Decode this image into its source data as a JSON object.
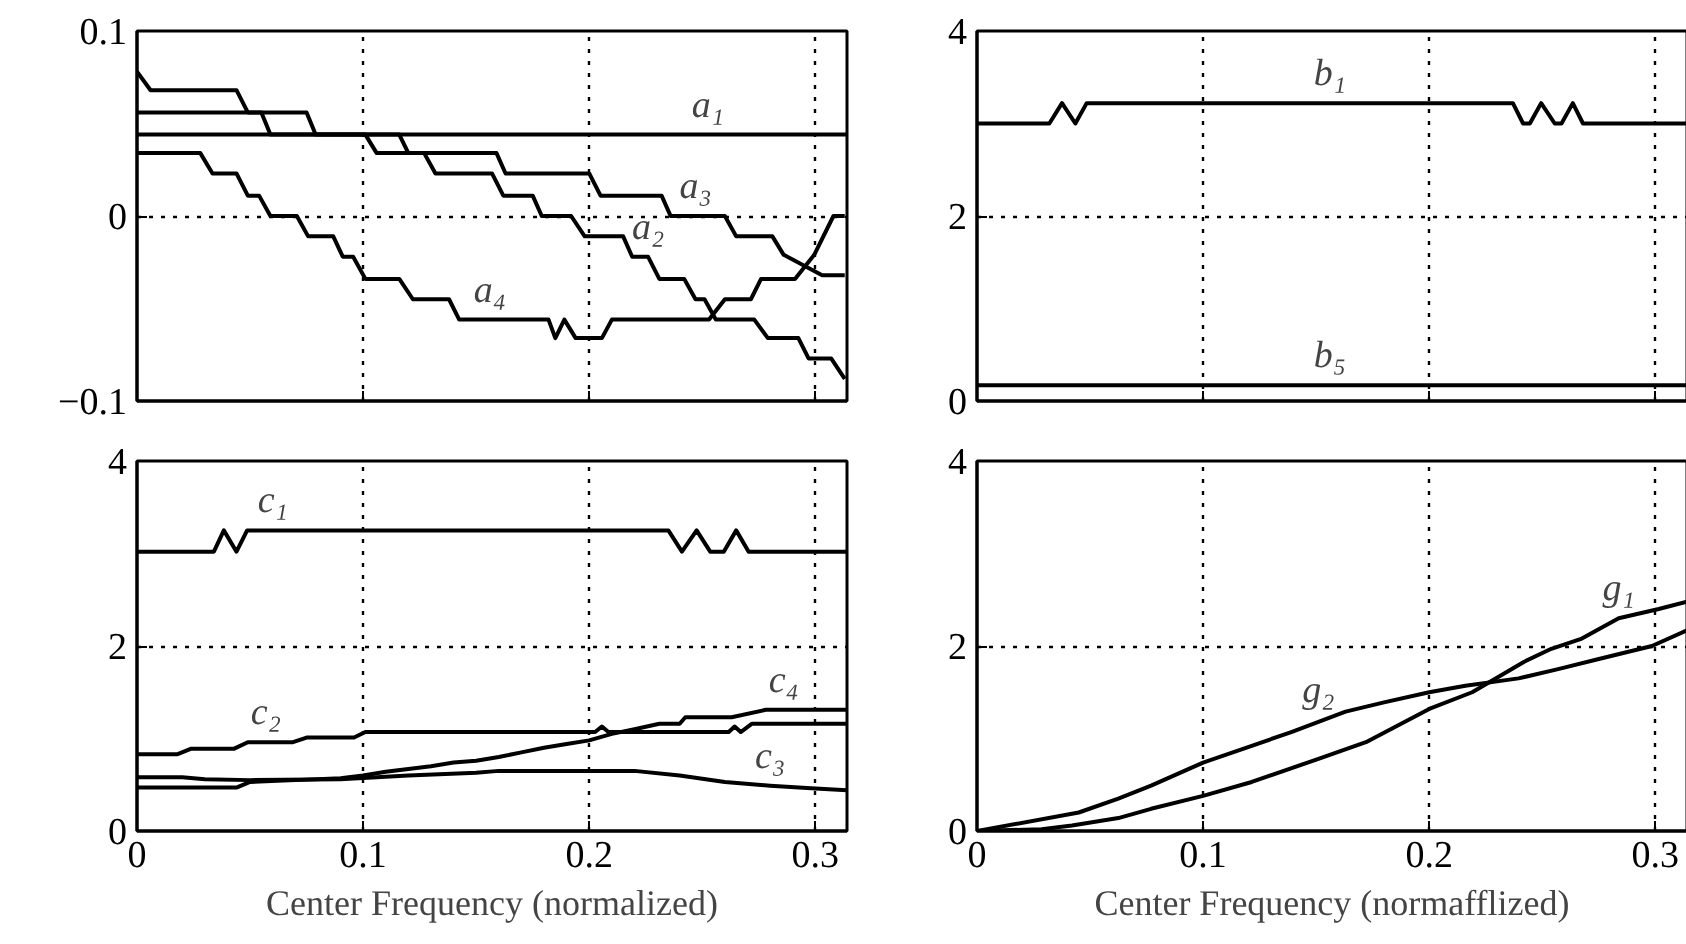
{
  "chart_data": [
    {
      "type": "line",
      "xlim": [
        0,
        0.314
      ],
      "xticks": [
        0,
        0.1,
        0.2,
        0.3
      ],
      "ylim": [
        -0.1,
        0.1
      ],
      "yticks": [
        {
          "value": -0.1,
          "label": "−0.1"
        },
        0,
        0.1
      ],
      "grid": true,
      "tick_labels": "y",
      "line_style": "solid",
      "series": [
        {
          "color": "#000000",
          "x": [
            0,
            0.314
          ],
          "values": [
            0.044,
            0.044
          ]
        },
        {
          "color": "#000000",
          "x": [
            0,
            0.006,
            0.044,
            0.049,
            0.055,
            0.059,
            0.101,
            0.106,
            0.127,
            0.132,
            0.157,
            0.162,
            0.175,
            0.179,
            0.192,
            0.198,
            0.215,
            0.219,
            0.226,
            0.231,
            0.242,
            0.247,
            0.251,
            0.256,
            0.273,
            0.279,
            0.2925,
            0.297,
            0.307,
            0.313
          ],
          "values": [
            0.078,
            0.068,
            0.068,
            0.056,
            0.056,
            0.044,
            0.044,
            0.034,
            0.034,
            0.023,
            0.023,
            0.011,
            0.011,
            0.0,
            0.0,
            -0.011,
            -0.011,
            -0.022,
            -0.022,
            -0.034,
            -0.034,
            -0.045,
            -0.045,
            -0.056,
            -0.056,
            -0.066,
            -0.066,
            -0.077,
            -0.077,
            -0.088
          ]
        },
        {
          "color": "#000000",
          "x": [
            0,
            0.075,
            0.079,
            0.116,
            0.12,
            0.159,
            0.163,
            0.2,
            0.205,
            0.232,
            0.236,
            0.26,
            0.265,
            0.281,
            0.286,
            0.303,
            0.313
          ],
          "values": [
            0.056,
            0.056,
            0.044,
            0.044,
            0.034,
            0.034,
            0.023,
            0.023,
            0.011,
            0.011,
            0.0,
            0.0,
            -0.011,
            -0.011,
            -0.021,
            -0.032,
            -0.032
          ]
        },
        {
          "color": "#000000",
          "x": [
            0,
            0.028,
            0.0334,
            0.044,
            0.049,
            0.054,
            0.059,
            0.0707,
            0.0757,
            0.0868,
            0.091,
            0.0956,
            0.101,
            0.116,
            0.122,
            0.138,
            0.1425,
            0.182,
            0.185,
            0.189,
            0.194,
            0.2056,
            0.21,
            0.253,
            0.26,
            0.2715,
            0.276,
            0.291,
            0.2995,
            0.308,
            0.313
          ],
          "values": [
            0.034,
            0.034,
            0.023,
            0.023,
            0.011,
            0.011,
            0.0,
            0.0,
            -0.011,
            -0.011,
            -0.022,
            -0.022,
            -0.034,
            -0.034,
            -0.045,
            -0.045,
            -0.056,
            -0.056,
            -0.066,
            -0.056,
            -0.066,
            -0.066,
            -0.056,
            -0.056,
            -0.045,
            -0.045,
            -0.034,
            -0.034,
            -0.021,
            0.0,
            0.0
          ]
        }
      ],
      "annotations": [
        {
          "text": "a₁",
          "x": 0.2525,
          "y": 0.044
        },
        {
          "text": "a₃",
          "x": 0.247,
          "y": 0.0
        },
        {
          "text": "a₂",
          "x": 0.226,
          "y": -0.022
        },
        {
          "text": "a₄",
          "x": 0.156,
          "y": -0.056
        }
      ]
    },
    {
      "type": "line",
      "xlim": [
        0,
        0.314
      ],
      "xticks": [
        0,
        0.1,
        0.2,
        0.3
      ],
      "ylim": [
        0,
        4
      ],
      "yticks": [
        0,
        2,
        4
      ],
      "grid": true,
      "tick_labels": "y",
      "line_style": "solid",
      "series": [
        {
          "color": "#000000",
          "x": [
            0,
            0.032,
            0.0376,
            0.0435,
            0.0485,
            0.237,
            0.2415,
            0.2445,
            0.2495,
            0.2555,
            0.2585,
            0.2635,
            0.268,
            0.314
          ],
          "values": [
            3.0,
            3.0,
            3.22,
            3.0,
            3.22,
            3.22,
            3.0,
            3.0,
            3.22,
            3.0,
            3.0,
            3.22,
            3.0,
            3.0
          ]
        },
        {
          "color": "#000000",
          "x": [
            0,
            0.314
          ],
          "values": [
            0.17,
            0.17
          ]
        }
      ],
      "annotations": [
        {
          "text": "b₁",
          "x": 0.156,
          "y": 3.22
        },
        {
          "text": "b₅",
          "x": 0.156,
          "y": 0.17
        }
      ]
    },
    {
      "type": "line",
      "xlabel": "Center Frequency (normalized)",
      "xlim": [
        0,
        0.314
      ],
      "xticks": [
        0,
        0.1,
        0.2,
        0.3
      ],
      "ylim": [
        0,
        4
      ],
      "yticks": [
        0,
        2,
        4
      ],
      "grid": true,
      "line_style": "solid",
      "series": [
        {
          "color": "#000000",
          "x": [
            0,
            0.034,
            0.0384,
            0.044,
            0.0487,
            0.235,
            0.241,
            0.2475,
            0.2535,
            0.2595,
            0.265,
            0.2705,
            0.314
          ],
          "values": [
            3.02,
            3.02,
            3.25,
            3.02,
            3.25,
            3.25,
            3.02,
            3.25,
            3.02,
            3.02,
            3.25,
            3.02,
            3.02
          ]
        },
        {
          "color": "#000000",
          "x": [
            0,
            0.018,
            0.024,
            0.043,
            0.049,
            0.069,
            0.075,
            0.096,
            0.101,
            0.2026,
            0.2056,
            0.2085,
            0.2617,
            0.2643,
            0.267,
            0.272,
            0.314
          ],
          "values": [
            0.83,
            0.83,
            0.89,
            0.89,
            0.96,
            0.96,
            1.01,
            1.01,
            1.07,
            1.07,
            1.13,
            1.07,
            1.07,
            1.13,
            1.07,
            1.16,
            1.16
          ]
        },
        {
          "color": "#000000",
          "x": [
            0,
            0.02,
            0.03,
            0.05,
            0.09,
            0.12,
            0.15,
            0.16,
            0.22,
            0.24,
            0.26,
            0.28,
            0.3,
            0.314
          ],
          "values": [
            0.58,
            0.58,
            0.56,
            0.55,
            0.56,
            0.6,
            0.63,
            0.65,
            0.65,
            0.6,
            0.53,
            0.49,
            0.46,
            0.44
          ]
        },
        {
          "color": "#000000",
          "x": [
            0,
            0.044,
            0.05,
            0.07,
            0.09,
            0.1,
            0.11,
            0.12,
            0.13,
            0.14,
            0.15,
            0.16,
            0.17,
            0.18,
            0.19,
            0.2,
            0.21,
            0.22,
            0.231,
            0.24,
            0.2425,
            0.263,
            0.278,
            0.314
          ],
          "values": [
            0.47,
            0.47,
            0.53,
            0.55,
            0.57,
            0.6,
            0.64,
            0.67,
            0.7,
            0.74,
            0.76,
            0.8,
            0.85,
            0.9,
            0.94,
            0.98,
            1.05,
            1.1,
            1.16,
            1.16,
            1.23,
            1.23,
            1.31,
            1.31
          ]
        }
      ],
      "annotations": [
        {
          "text": "c₁",
          "x": 0.06,
          "y": 3.25
        },
        {
          "text": "c₂",
          "x": 0.057,
          "y": 0.96
        },
        {
          "text": "c₄",
          "x": 0.286,
          "y": 1.31
        },
        {
          "text": "c₃",
          "x": 0.28,
          "y": 0.49
        }
      ]
    },
    {
      "type": "line",
      "xlabel": "Center Frequency (normafflized)",
      "xlim": [
        0,
        0.314
      ],
      "xticks": [
        0,
        0.1,
        0.2,
        0.3
      ],
      "ylim": [
        0,
        4
      ],
      "yticks": [
        0,
        2,
        4
      ],
      "grid": true,
      "line_style": "solid",
      "series": [
        {
          "color": "#000000",
          "x": [
            0,
            0.0286,
            0.042,
            0.0625,
            0.077,
            0.1,
            0.1215,
            0.151,
            0.172,
            0.2,
            0.219,
            0.242,
            0.254,
            0.2675,
            0.2838,
            0.3015,
            0.314
          ],
          "values": [
            0,
            0.02,
            0.06,
            0.14,
            0.24,
            0.38,
            0.53,
            0.78,
            0.96,
            1.32,
            1.5,
            1.83,
            1.97,
            2.08,
            2.3,
            2.4,
            2.48
          ]
        },
        {
          "color": "#000000",
          "x": [
            0,
            0.045,
            0.0625,
            0.077,
            0.1,
            0.1215,
            0.139,
            0.163,
            0.18,
            0.2,
            0.216,
            0.2395,
            0.257,
            0.275,
            0.2985,
            0.314
          ],
          "values": [
            0,
            0.2,
            0.35,
            0.49,
            0.74,
            0.92,
            1.07,
            1.29,
            1.39,
            1.5,
            1.57,
            1.65,
            1.75,
            1.86,
            2.0,
            2.17
          ]
        }
      ],
      "annotations": [
        {
          "text": "g₁",
          "x": 0.2838,
          "y": 2.3
        },
        {
          "text": "g₂",
          "x": 0.151,
          "y": 1.2
        }
      ]
    }
  ]
}
